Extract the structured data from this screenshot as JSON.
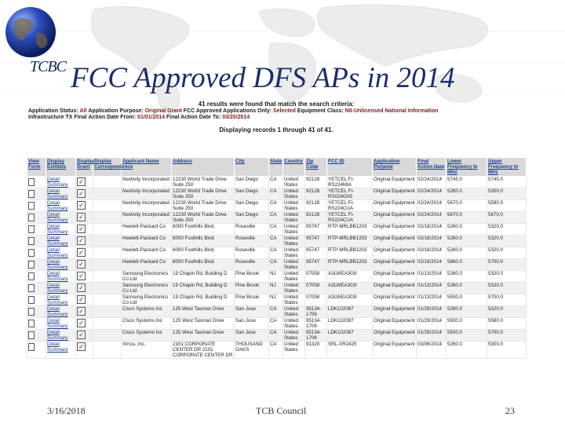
{
  "slide": {
    "logo_text": "TCBC",
    "title": "FCC Approved DFS APs in 2014",
    "footer": {
      "date": "3/16/2018",
      "center": "TCB Council",
      "page": "23"
    }
  },
  "results": {
    "headline": "41 results were found that match the search criteria:",
    "criteria_line1": [
      {
        "label": "Application Status:",
        "value": "All"
      },
      {
        "label": "Application Purpose:",
        "value": "Original Grant"
      },
      {
        "label": "FCC Approved Applications Only:",
        "value": "Selected"
      },
      {
        "label": "Equipment Class:",
        "value": "NII-Unlicensed National Information"
      }
    ],
    "criteria_line2": [
      {
        "label": "Infrastructure TX Final Action Date From:",
        "value": "01/01/2014"
      },
      {
        "label": "Final Action Date To:",
        "value": "03/20/2014"
      }
    ],
    "displaying": "Displaying records 1 through 41 of 41."
  },
  "table": {
    "headers": [
      "View Form",
      "Display Exhibits",
      "Display Grant",
      "Display Correspondence",
      "Applicant Name",
      "Address",
      "City",
      "State",
      "Country",
      "Zip Code",
      "FCC ID",
      "Application Purpose",
      "Final Action Date",
      "Lower Frequency In MHz",
      "Upper Frequency In MHz"
    ],
    "link_top": "Detail",
    "link_bottom": "Summary",
    "rows": [
      {
        "name": "Nextivity Incorporated",
        "address": "12230 World Trade Drive Suite 250",
        "city": "San Diego",
        "state": "CA",
        "country": "United States",
        "zip": "92128",
        "fccid": "YETCEL FI-RS224MIA",
        "purpose": "Original Equipment",
        "date": "02/24/2014",
        "lower": "5745.0",
        "upper": "5745.0"
      },
      {
        "name": "Nextivity Incorporated",
        "address": "12230 World Trade Drive Suite 250",
        "city": "San Diego",
        "state": "CA",
        "country": "United States",
        "zip": "92128",
        "fccid": "YETCEL FI-RS024GIIS",
        "purpose": "Original Equipment",
        "date": "02/24/2014",
        "lower": "5260.0",
        "upper": "5300.0"
      },
      {
        "name": "Nextivity Incorporated",
        "address": "12230 World Trade Drive Suite 250",
        "city": "San Diego",
        "state": "CA",
        "country": "United States",
        "zip": "92128",
        "fccid": "YETCEL FI-RS224CUA",
        "purpose": "Original Equipment",
        "date": "02/24/2014",
        "lower": "5670.0",
        "upper": "5590.0"
      },
      {
        "name": "Nextivity Incorporated",
        "address": "12230 World Trade Drive Suite 250",
        "city": "San Diego",
        "state": "CA",
        "country": "United States",
        "zip": "92128",
        "fccid": "YETCEL FI-RS224CUA",
        "purpose": "Original Equipment",
        "date": "02/24/2014",
        "lower": "5670.0",
        "upper": "5670.0"
      },
      {
        "name": "Hewlett-Packard Co",
        "address": "8000 Foothills Blvd.",
        "city": "Roseville",
        "state": "CA",
        "country": "United States",
        "zip": "95747",
        "fccid": "RTP-MRLBB1203",
        "purpose": "Original Equipment",
        "date": "02/18/2014",
        "lower": "5260.0",
        "upper": "5320.0"
      },
      {
        "name": "Hewlett-Packard Co",
        "address": "8000 Foothills Blvd.",
        "city": "Roseville",
        "state": "CA",
        "country": "United States",
        "zip": "95747",
        "fccid": "RTP-MRLBB1203",
        "purpose": "Original Equipment",
        "date": "02/18/2014",
        "lower": "5260.0",
        "upper": "5320.0"
      },
      {
        "name": "Hewlett-Packard Co",
        "address": "8000 Foothills Blvd.",
        "city": "Roseville",
        "state": "CA",
        "country": "United States",
        "zip": "95747",
        "fccid": "RTP-MRLBB1203",
        "purpose": "Original Equipment",
        "date": "02/18/2014",
        "lower": "5260.0",
        "upper": "5320.0"
      },
      {
        "name": "Hewlett-Packard Co",
        "address": "8000 Foothills Blvd.",
        "city": "Roseville",
        "state": "CA",
        "country": "United States",
        "zip": "95747",
        "fccid": "RTP-MRLBB1203",
        "purpose": "Original Equipment",
        "date": "02/18/2014",
        "lower": "5660.0",
        "upper": "5700.0"
      },
      {
        "name": "Samsung Electronics Co Ltd",
        "address": "19 Chapin Rd, Building D",
        "city": "Pine Brook",
        "state": "NJ",
        "country": "United States",
        "zip": "07058",
        "fccid": "A3LWEA303I",
        "purpose": "Original Equipment",
        "date": "01/13/2014",
        "lower": "5260.0",
        "upper": "5320.0"
      },
      {
        "name": "Samsung Electronics Co Ltd",
        "address": "19 Chapin Rd, Building D",
        "city": "Pine Brook",
        "state": "NJ",
        "country": "United States",
        "zip": "07058",
        "fccid": "A3LWEA303I",
        "purpose": "Original Equipment",
        "date": "01/13/2014",
        "lower": "5260.0",
        "upper": "5320.0"
      },
      {
        "name": "Samsung Electronics Co Ltd",
        "address": "19 Chapin Rd, Building D",
        "city": "Pine Brook",
        "state": "NJ",
        "country": "United States",
        "zip": "07058",
        "fccid": "A3LWEA303I",
        "purpose": "Original Equipment",
        "date": "01/13/2014",
        "lower": "5500.0",
        "upper": "5700.0"
      },
      {
        "name": "Cisco Systems Inc",
        "address": "125 West Tasman Drive",
        "city": "San Jose",
        "state": "CA",
        "country": "United States",
        "zip": "95134-1706",
        "fccid": "LDK102087",
        "purpose": "Original Equipment",
        "date": "01/29/2014",
        "lower": "5280.0",
        "upper": "5320.0"
      },
      {
        "name": "Cisco Systems Inc",
        "address": "125 West Tasman Drive",
        "city": "San Jose",
        "state": "CA",
        "country": "United States",
        "zip": "95134-1706",
        "fccid": "LDK102087",
        "purpose": "Original Equipment",
        "date": "01/29/2014",
        "lower": "5500.0",
        "upper": "5580.0"
      },
      {
        "name": "Cisco Systems Inc",
        "address": "125 West Tasman Drive",
        "city": "San Jose",
        "state": "CA",
        "country": "United States",
        "zip": "95134-1706",
        "fccid": "LDK102087",
        "purpose": "Original Equipment",
        "date": "01/29/2014",
        "lower": "5500.0",
        "upper": "5700.0"
      },
      {
        "name": "Xirrus, Inc.",
        "address": "2101 CORPORATE CENTER DR 2101 CORPORATE CENTER DR",
        "city": "THOUSAND OAKS",
        "state": "CA",
        "country": "United States",
        "zip": "91320",
        "fccid": "SRL-XR2425",
        "purpose": "Original Equipment",
        "date": "03/06/2014",
        "lower": "5260.0",
        "upper": "5300.0"
      }
    ]
  }
}
